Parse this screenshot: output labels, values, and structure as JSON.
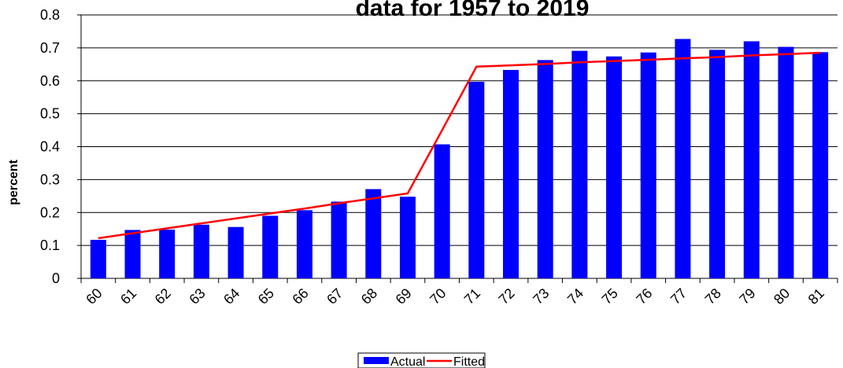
{
  "chart_data": {
    "type": "bar_line",
    "title": "data for 1957 to 2019",
    "y_label": "percent",
    "categories": [
      "60",
      "61",
      "62",
      "63",
      "64",
      "65",
      "66",
      "67",
      "68",
      "69",
      "70",
      "71",
      "72",
      "73",
      "74",
      "75",
      "76",
      "77",
      "78",
      "79",
      "80",
      "81"
    ],
    "series": [
      {
        "name": "Actual",
        "type": "bar",
        "color": "#0000ff",
        "values": [
          0.117,
          0.147,
          0.148,
          0.163,
          0.156,
          0.19,
          0.207,
          0.233,
          0.271,
          0.248,
          0.407,
          0.597,
          0.633,
          0.663,
          0.691,
          0.674,
          0.686,
          0.727,
          0.694,
          0.72,
          0.703,
          0.687
        ]
      },
      {
        "name": "Fitted",
        "type": "line",
        "color": "#ff0000",
        "values": [
          0.122,
          0.137,
          0.152,
          0.167,
          0.182,
          0.197,
          0.212,
          0.228,
          0.243,
          0.258,
          0.45,
          0.643,
          0.647,
          0.651,
          0.656,
          0.66,
          0.664,
          0.668,
          0.672,
          0.677,
          0.681,
          0.685
        ]
      }
    ],
    "ylim": [
      0,
      0.8
    ],
    "yticks": [
      0,
      0.1,
      0.2,
      0.3,
      0.4,
      0.5,
      0.6,
      0.7,
      0.8
    ],
    "grid": true,
    "legend": "bottom"
  }
}
